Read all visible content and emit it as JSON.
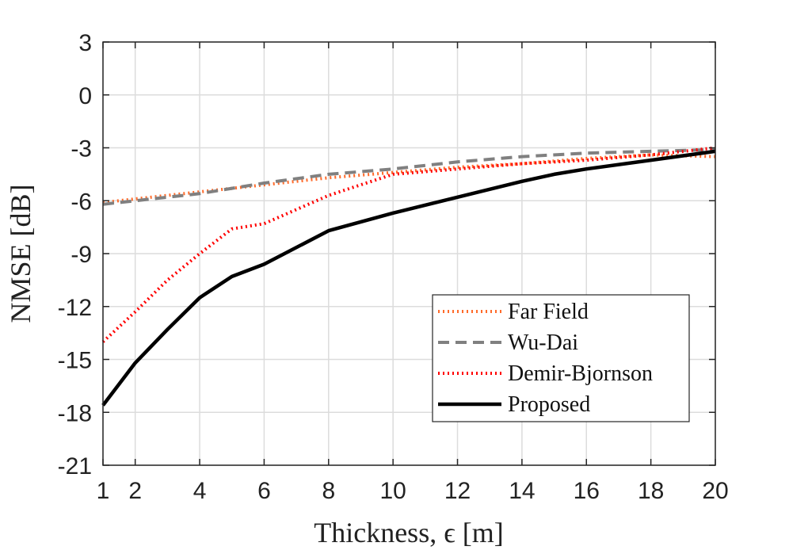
{
  "chart_data": {
    "type": "line",
    "xlabel": "Thickness, ϵ [m]",
    "ylabel": "NMSE [dB]",
    "xlim": [
      1,
      20
    ],
    "ylim": [
      -21,
      3
    ],
    "xticks": [
      1,
      2,
      4,
      6,
      8,
      10,
      12,
      14,
      16,
      18,
      20
    ],
    "yticks": [
      3,
      0,
      -3,
      -6,
      -9,
      -12,
      -15,
      -18,
      -21
    ],
    "xtick_labels": [
      "1",
      "2",
      "4",
      "6",
      "8",
      "10",
      "12",
      "14",
      "16",
      "18",
      "20"
    ],
    "ytick_labels": [
      "3",
      "0",
      "-3",
      "-6",
      "-9",
      "-12",
      "-15",
      "-18",
      "-21"
    ],
    "grid": true,
    "legend_position": "bottom-right",
    "series": [
      {
        "name": "Far Field",
        "color": "#ff6b2b",
        "style": "dotted",
        "x": [
          1,
          2,
          4,
          6,
          8,
          10,
          12,
          14,
          16,
          18,
          20
        ],
        "y": [
          -6.1,
          -5.9,
          -5.5,
          -5.1,
          -4.7,
          -4.4,
          -4.1,
          -3.9,
          -3.6,
          -3.4,
          -3.5
        ]
      },
      {
        "name": "Wu-Dai",
        "color": "#808080",
        "style": "dashed",
        "x": [
          1,
          2,
          4,
          6,
          8,
          10,
          12,
          14,
          16,
          18,
          20
        ],
        "y": [
          -6.2,
          -6.0,
          -5.6,
          -5.0,
          -4.5,
          -4.2,
          -3.8,
          -3.5,
          -3.3,
          -3.2,
          -3.1
        ]
      },
      {
        "name": "Demir-Bjornson",
        "color": "#ff0000",
        "style": "dotted",
        "x": [
          1,
          2,
          3,
          4,
          5,
          6,
          7,
          8,
          9,
          10,
          12,
          14,
          16,
          18,
          20
        ],
        "y": [
          -14.0,
          -12.3,
          -10.5,
          -9.0,
          -7.6,
          -7.3,
          -6.5,
          -5.7,
          -5.1,
          -4.5,
          -4.2,
          -3.9,
          -3.7,
          -3.4,
          -3.0
        ]
      },
      {
        "name": "Proposed",
        "color": "#000000",
        "style": "solid",
        "x": [
          1,
          2,
          3,
          4,
          5,
          6,
          8,
          10,
          12,
          14,
          15,
          16,
          18,
          20
        ],
        "y": [
          -17.6,
          -15.2,
          -13.3,
          -11.5,
          -10.3,
          -9.6,
          -7.7,
          -6.7,
          -5.8,
          -4.9,
          -4.5,
          -4.2,
          -3.7,
          -3.2
        ]
      }
    ]
  }
}
